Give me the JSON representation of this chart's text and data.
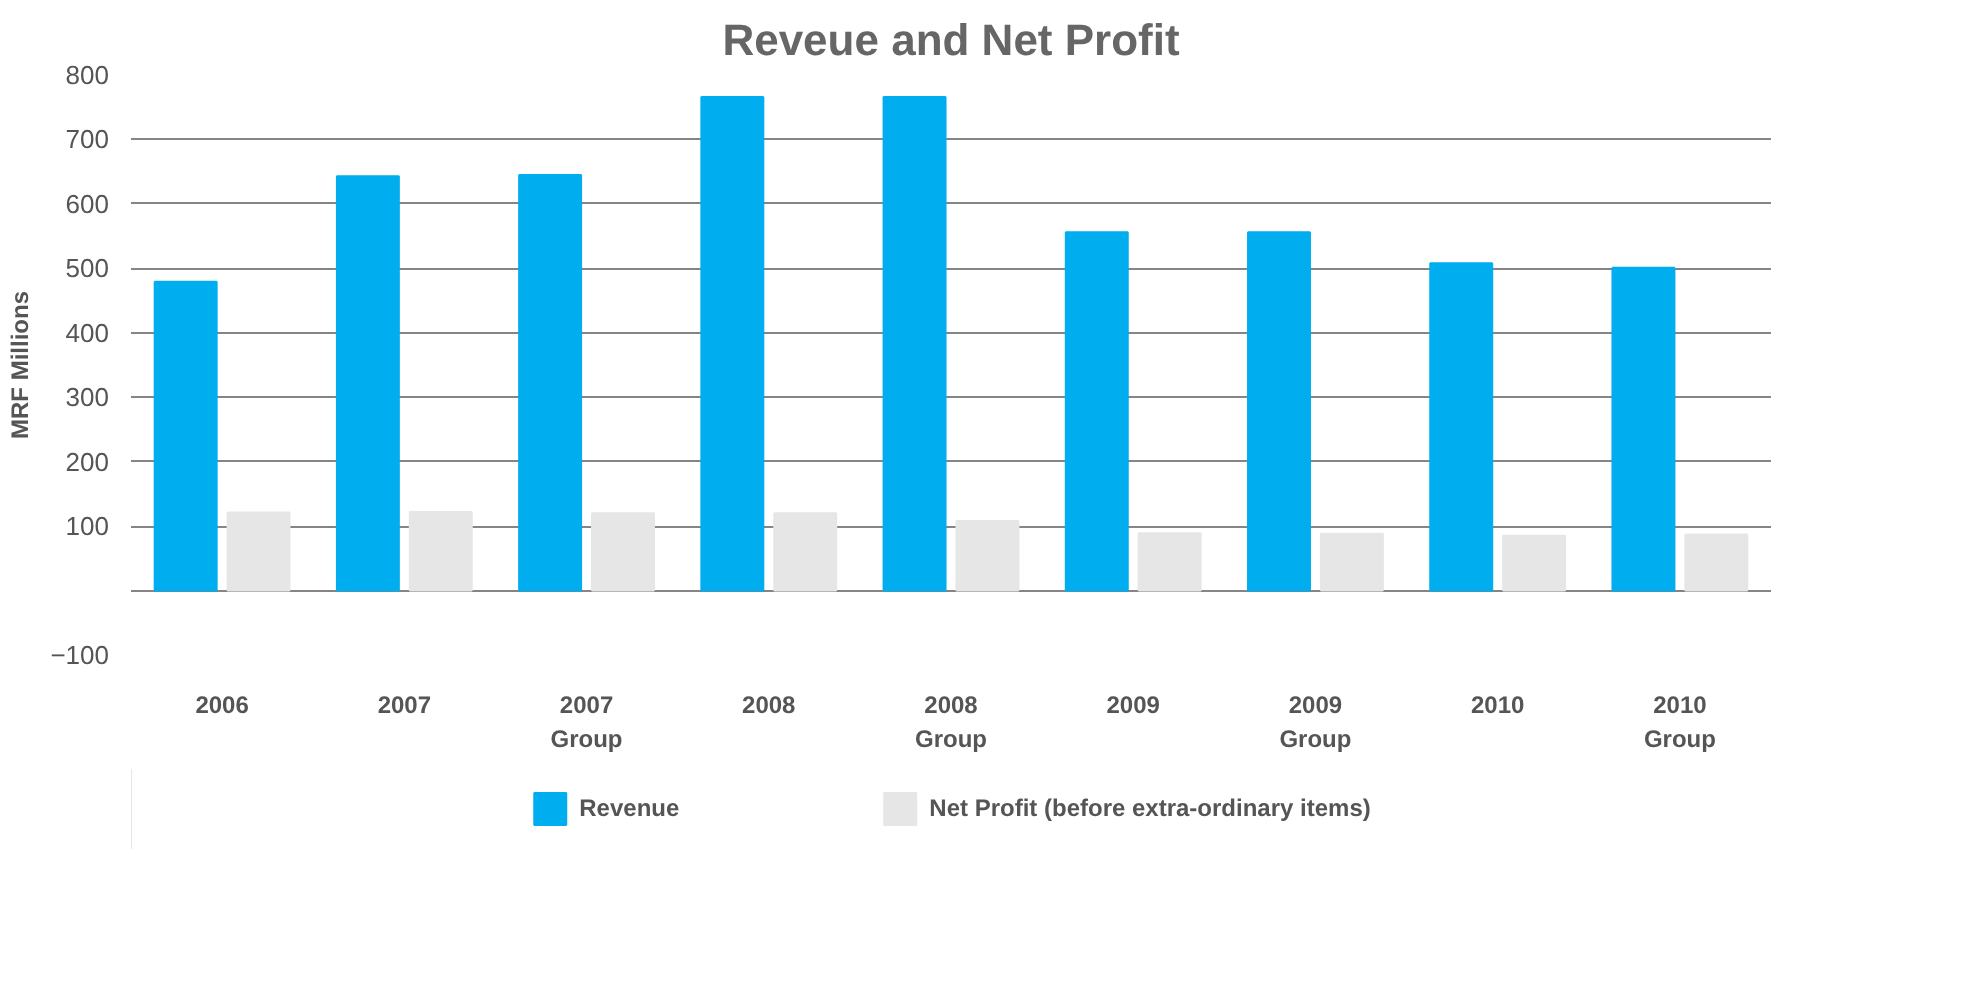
{
  "chart_data": {
    "type": "bar",
    "title": "Reveue and Net Profit",
    "ylabel": "MRF Millions",
    "categories": [
      "2006",
      "2007",
      "2007\nGroup",
      "2008",
      "2008\nGroup",
      "2009",
      "2009\nGroup",
      "2010",
      "2010\nGroup"
    ],
    "series": [
      {
        "name": "Revenue",
        "color": "#00aeef",
        "values": [
          479,
          643,
          645,
          766,
          766,
          556,
          556,
          508,
          501
        ]
      },
      {
        "name": "Net Profit (before extra-ordinary items)",
        "color": "#e6e6e6",
        "values": [
          121,
          122,
          120,
          120,
          108,
          89,
          88,
          85,
          87
        ]
      }
    ],
    "ylim": [
      -100,
      800
    ],
    "yticks": [
      -100,
      {
        "value": 0,
        "label": null
      },
      100,
      200,
      300,
      400,
      500,
      600,
      700,
      800
    ],
    "grid": "y",
    "legend": "bottom"
  }
}
